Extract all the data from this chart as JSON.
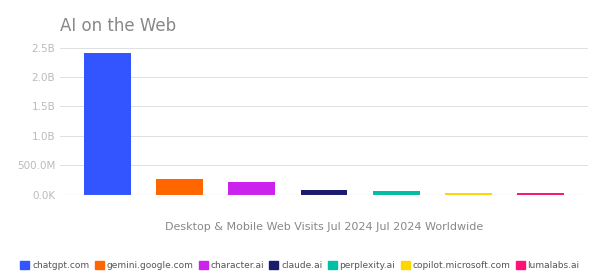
{
  "title": "AI on the Web",
  "xlabel": "Desktop & Mobile Web Visits Jul 2024 Jul 2024 Worldwide",
  "categories": [
    "chatgpt.com",
    "gemini.google.com",
    "character.ai",
    "claude.ai",
    "perplexity.ai",
    "copilot.microsoft.com",
    "lumalabs.ai"
  ],
  "values": [
    2400000000,
    270000000,
    210000000,
    70000000,
    65000000,
    35000000,
    28000000
  ],
  "colors": [
    "#3355FF",
    "#FF6600",
    "#CC22EE",
    "#1A1A6E",
    "#00BFA5",
    "#FFD600",
    "#FF1177"
  ],
  "ylim": [
    0,
    2600000000
  ],
  "yticks": [
    0,
    500000000,
    1000000000,
    1500000000,
    2000000000,
    2500000000
  ],
  "ytick_labels": [
    "0.0K",
    "500.0M",
    "1.0B",
    "1.5B",
    "2.0B",
    "2.5B"
  ],
  "title_color": "#888888",
  "axis_color": "#bbbbbb",
  "grid_color": "#e0e0e0",
  "xlabel_color": "#888888",
  "legend_labels": [
    "chatgpt.com",
    "gemini.google.com",
    "character.ai",
    "claude.ai",
    "perplexity.ai",
    "copilot.microsoft.com",
    "lumalabs.ai"
  ]
}
